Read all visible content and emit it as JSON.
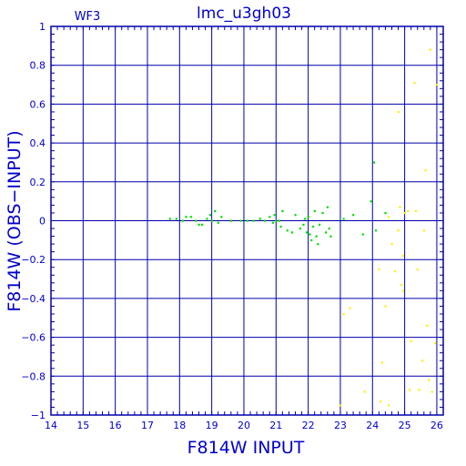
{
  "chart_data": {
    "type": "scatter",
    "title": "lmc_u3gh03",
    "corner_label": "WF3",
    "xlabel": "F814W INPUT",
    "ylabel": "F814W (OBS−INPUT)",
    "xlim": [
      14,
      26.2
    ],
    "ylim": [
      -1,
      1
    ],
    "grid": true,
    "x_ticks": [
      "14",
      "15",
      "16",
      "17",
      "18",
      "19",
      "20",
      "21",
      "22",
      "23",
      "24",
      "25",
      "26"
    ],
    "y_ticks": [
      "1",
      "0.8",
      "0.6",
      "0.4",
      "0.2",
      "0",
      "−0.2",
      "−0.4",
      "−0.6",
      "−0.8",
      "−1"
    ],
    "colors": {
      "frame": "#0000aa",
      "grid": "#0000aa",
      "text": "#0000cc",
      "series_green": "#00dd00",
      "series_yellow": "#ffee00"
    },
    "series": [
      {
        "color_key": "series_green",
        "points": [
          [
            17.7,
            0.01
          ],
          [
            17.9,
            0.01
          ],
          [
            18.1,
            0.0
          ],
          [
            18.2,
            0.02
          ],
          [
            18.35,
            0.02
          ],
          [
            18.5,
            0.0
          ],
          [
            18.6,
            -0.02
          ],
          [
            18.7,
            -0.02
          ],
          [
            18.85,
            0.01
          ],
          [
            18.95,
            0.03
          ],
          [
            19.0,
            0.0
          ],
          [
            19.1,
            0.05
          ],
          [
            19.2,
            -0.01
          ],
          [
            19.3,
            0.02
          ],
          [
            19.6,
            0.0
          ],
          [
            19.9,
            0.0
          ],
          [
            20.1,
            0.0
          ],
          [
            20.3,
            0.0
          ],
          [
            20.5,
            0.01
          ],
          [
            20.65,
            0.0
          ],
          [
            20.8,
            0.02
          ],
          [
            20.9,
            -0.01
          ],
          [
            20.95,
            0.03
          ],
          [
            21.0,
            0.0
          ],
          [
            21.1,
            0.0
          ],
          [
            21.15,
            -0.03
          ],
          [
            21.2,
            0.05
          ],
          [
            21.35,
            -0.05
          ],
          [
            21.5,
            -0.06
          ],
          [
            21.6,
            0.03
          ],
          [
            21.75,
            -0.04
          ],
          [
            21.85,
            -0.02
          ],
          [
            21.9,
            0.01
          ],
          [
            21.95,
            -0.06
          ],
          [
            22.0,
            0.02
          ],
          [
            22.05,
            -0.07
          ],
          [
            22.1,
            -0.1
          ],
          [
            22.15,
            -0.03
          ],
          [
            22.2,
            0.05
          ],
          [
            22.25,
            -0.08
          ],
          [
            22.3,
            -0.12
          ],
          [
            22.35,
            -0.02
          ],
          [
            22.45,
            0.04
          ],
          [
            22.55,
            -0.06
          ],
          [
            22.6,
            0.07
          ],
          [
            22.65,
            -0.04
          ],
          [
            22.7,
            -0.08
          ],
          [
            23.1,
            0.01
          ],
          [
            23.4,
            0.03
          ],
          [
            23.7,
            -0.07
          ],
          [
            23.95,
            0.1
          ],
          [
            24.05,
            0.3
          ],
          [
            24.1,
            -0.05
          ],
          [
            24.4,
            0.04
          ]
        ]
      },
      {
        "color_key": "series_yellow",
        "points": [
          [
            24.5,
            0.02
          ],
          [
            24.8,
            -0.05
          ],
          [
            24.85,
            0.07
          ],
          [
            24.9,
            -0.33
          ],
          [
            24.95,
            -0.18
          ],
          [
            25.0,
            0.04
          ],
          [
            25.1,
            0.05
          ],
          [
            25.15,
            -0.87
          ],
          [
            25.2,
            -0.62
          ],
          [
            25.3,
            0.71
          ],
          [
            25.4,
            -0.25
          ],
          [
            25.45,
            -0.87
          ],
          [
            25.55,
            -0.72
          ],
          [
            25.6,
            -0.05
          ],
          [
            25.65,
            0.26
          ],
          [
            25.7,
            -0.54
          ],
          [
            25.75,
            -0.82
          ],
          [
            25.8,
            0.88
          ],
          [
            25.85,
            -0.88
          ],
          [
            25.95,
            -0.63
          ],
          [
            26.0,
            0.7
          ],
          [
            24.2,
            -0.25
          ],
          [
            24.3,
            -0.73
          ],
          [
            24.4,
            -0.44
          ],
          [
            24.6,
            -0.12
          ],
          [
            24.7,
            -0.26
          ],
          [
            24.8,
            0.56
          ],
          [
            24.5,
            -0.95
          ],
          [
            24.25,
            -0.93
          ],
          [
            23.75,
            -0.88
          ],
          [
            23.1,
            -0.48
          ],
          [
            23.3,
            -0.45
          ],
          [
            23.0,
            -0.95
          ],
          [
            25.35,
            0.05
          ],
          [
            24.95,
            -0.36
          ]
        ]
      }
    ]
  }
}
